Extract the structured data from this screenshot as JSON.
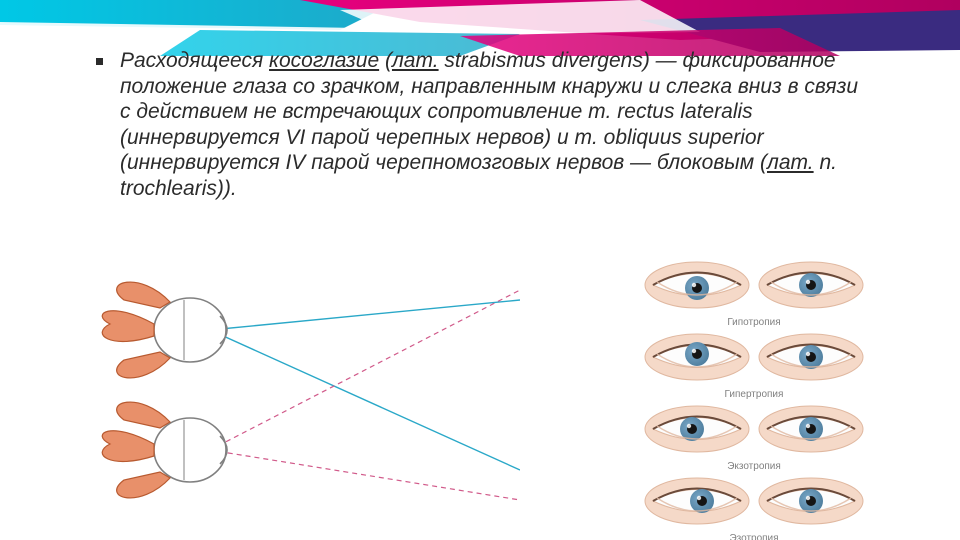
{
  "banner": {
    "colors": {
      "cyan": "#00c8e6",
      "cyan2": "#1fa8c8",
      "white": "#ffffff",
      "magenta": "#e6007e",
      "magenta2": "#c2006b",
      "purple": "#3a2b80"
    }
  },
  "text": {
    "p1a": "Расходящееся ",
    "link1": "косоглазие",
    "p1b": " (",
    "link2": "лат.",
    "p1c": " strabismus divergens) — фиксированное положение глаза со зрачком, направленным кнаружи и слегка вниз в связи с действием не встречающих сопротивление m. rectus lateralis (иннервируется VI парой черепных нервов) и m. obliquus superior (иннервируется IV парой черепномозговых нервов — блоковым (",
    "link3": "лат.",
    "p1d": " n. trochlearis))."
  },
  "eyes": {
    "iris": "#7aa8c8",
    "iris_dark": "#4a7a9a",
    "skin": "#f5d9c8",
    "skin_shadow": "#e0b8a0",
    "white": "#fdfdfd",
    "rows": [
      {
        "caption": "Гипотропия",
        "leftX": 0,
        "leftY": 3,
        "rightX": 0,
        "rightY": 0
      },
      {
        "caption": "Гипертропия",
        "leftX": 0,
        "leftY": -3,
        "rightX": 0,
        "rightY": 0
      },
      {
        "caption": "Экзотропия",
        "leftX": -5,
        "leftY": 0,
        "rightX": 0,
        "rightY": 0
      },
      {
        "caption": "Эзотропия",
        "leftX": 5,
        "leftY": 0,
        "rightX": 0,
        "rightY": 0
      }
    ]
  },
  "diagram": {
    "muscle_fill": "#e8906a",
    "muscle_stroke": "#b85a30",
    "eye_fill": "#ffffff",
    "eye_stroke": "#808080",
    "ray_solid": "#2aa8c8",
    "ray_dash": "#d15a8a",
    "bg": "#ffffff"
  }
}
